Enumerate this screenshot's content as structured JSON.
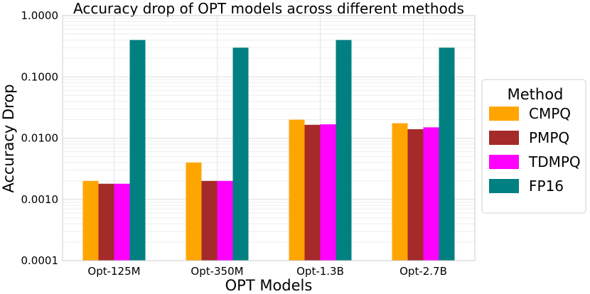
{
  "chart_data": {
    "type": "bar",
    "title": "Accuracy drop of OPT models across different methods",
    "xlabel": "OPT Models",
    "ylabel": "Accuracy Drop",
    "yscale": "log",
    "ylim": [
      0.0001,
      1.0
    ],
    "yticks": [
      0.0001,
      0.001,
      0.01,
      0.1,
      1.0
    ],
    "ytick_labels": [
      "0.0001",
      "0.0010",
      "0.0100",
      "0.1000",
      "1.0000"
    ],
    "categories": [
      "Opt-125M",
      "Opt-350M",
      "Opt-1.3B",
      "Opt-2.7B"
    ],
    "series": [
      {
        "name": "CMPQ",
        "color": "#FFA500",
        "values": [
          0.002,
          0.004,
          0.02,
          0.0175
        ]
      },
      {
        "name": "PMPQ",
        "color": "#A52A2A",
        "values": [
          0.0018,
          0.002,
          0.0165,
          0.014
        ]
      },
      {
        "name": "TDMPQ",
        "color": "#FF00FF",
        "values": [
          0.0018,
          0.002,
          0.0168,
          0.015
        ]
      },
      {
        "name": "FP16",
        "color": "#008080",
        "values": [
          0.4,
          0.3,
          0.4,
          0.3
        ]
      }
    ],
    "grid": true,
    "legend": {
      "title": "Method",
      "placement": "right"
    }
  }
}
